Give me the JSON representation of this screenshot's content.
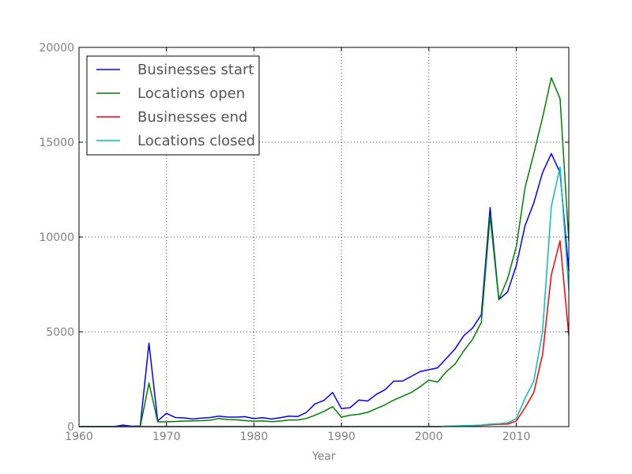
{
  "chart_data": {
    "type": "line",
    "title": "",
    "xlabel": "Year",
    "ylabel": "",
    "xlim": [
      1960,
      2016
    ],
    "ylim": [
      0,
      20000
    ],
    "xticks": [
      1960,
      1970,
      1980,
      1990,
      2000,
      2010
    ],
    "yticks": [
      0,
      5000,
      10000,
      15000,
      20000
    ],
    "x_tick_labels": [
      "1960",
      "1970",
      "1980",
      "1990",
      "2000",
      "2010"
    ],
    "y_tick_labels": [
      "0",
      "5000",
      "10000",
      "15000",
      "20000"
    ],
    "grid": true,
    "legend_position": "top-left",
    "x": [
      1960,
      1961,
      1962,
      1963,
      1964,
      1965,
      1966,
      1967,
      1968,
      1969,
      1970,
      1971,
      1972,
      1973,
      1974,
      1975,
      1976,
      1977,
      1978,
      1979,
      1980,
      1981,
      1982,
      1983,
      1984,
      1985,
      1986,
      1987,
      1988,
      1989,
      1990,
      1991,
      1992,
      1993,
      1994,
      1995,
      1996,
      1997,
      1998,
      1999,
      2000,
      2001,
      2002,
      2003,
      2004,
      2005,
      2006,
      2007,
      2008,
      2009,
      2010,
      2011,
      2012,
      2013,
      2014,
      2015,
      2016
    ],
    "series": [
      {
        "name": "Businesses start",
        "color": "#0000ff",
        "values": [
          0,
          0,
          0,
          0,
          0,
          80,
          20,
          30,
          4400,
          300,
          700,
          480,
          460,
          400,
          450,
          480,
          550,
          500,
          500,
          520,
          420,
          470,
          400,
          470,
          550,
          530,
          750,
          1200,
          1380,
          1800,
          950,
          1000,
          1400,
          1350,
          1700,
          1950,
          2400,
          2400,
          2650,
          2900,
          3000,
          3100,
          3600,
          4100,
          4800,
          5200,
          5900,
          11550,
          6700,
          7100,
          8500,
          10600,
          11800,
          13400,
          14400,
          13400,
          8200
        ]
      },
      {
        "name": "Locations open",
        "color": "#008000",
        "values": [
          0,
          0,
          0,
          0,
          0,
          0,
          0,
          0,
          2300,
          250,
          250,
          270,
          290,
          300,
          310,
          340,
          430,
          370,
          360,
          320,
          280,
          300,
          260,
          290,
          350,
          350,
          430,
          600,
          800,
          1050,
          500,
          600,
          650,
          750,
          950,
          1150,
          1400,
          1600,
          1800,
          2100,
          2450,
          2350,
          2900,
          3300,
          4000,
          4600,
          5500,
          11100,
          6700,
          7800,
          9500,
          12600,
          14400,
          16300,
          18400,
          17300,
          9800
        ]
      },
      {
        "name": "Businesses end",
        "color": "#ff0000",
        "values": [
          0,
          0,
          0,
          0,
          0,
          0,
          0,
          0,
          0,
          0,
          0,
          0,
          0,
          0,
          0,
          0,
          0,
          0,
          0,
          0,
          0,
          0,
          0,
          0,
          0,
          0,
          0,
          0,
          0,
          0,
          0,
          0,
          0,
          0,
          0,
          0,
          0,
          0,
          0,
          0,
          0,
          0,
          10,
          20,
          30,
          40,
          60,
          100,
          120,
          130,
          300,
          1000,
          1800,
          3800,
          8000,
          9800,
          4800
        ]
      },
      {
        "name": "Locations closed",
        "color": "#00bfbf",
        "values": [
          0,
          0,
          0,
          0,
          0,
          0,
          0,
          0,
          0,
          0,
          0,
          0,
          0,
          0,
          0,
          0,
          0,
          0,
          0,
          0,
          0,
          0,
          0,
          0,
          0,
          0,
          0,
          0,
          0,
          0,
          0,
          0,
          0,
          0,
          0,
          0,
          0,
          0,
          0,
          0,
          0,
          0,
          20,
          30,
          50,
          60,
          80,
          130,
          150,
          200,
          420,
          1500,
          2400,
          5000,
          11600,
          13700,
          7200
        ]
      }
    ]
  }
}
